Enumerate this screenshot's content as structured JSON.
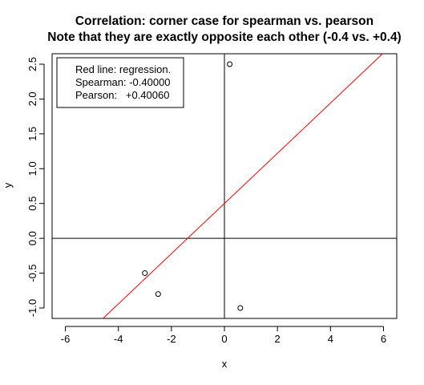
{
  "chart_data": {
    "type": "scatter",
    "title": "Correlation: corner case for spearman vs. pearson",
    "subtitle": "Note that they are exactly opposite each other (-0.4 vs. +0.4)",
    "xlabel": "x",
    "ylabel": "y",
    "xlim": [
      -6.5,
      6.5
    ],
    "ylim": [
      -1.15,
      2.65
    ],
    "xticks": [
      -6,
      -4,
      -2,
      0,
      2,
      4,
      6
    ],
    "yticks": [
      -1.0,
      -0.5,
      0.0,
      0.5,
      1.0,
      1.5,
      2.0,
      2.5
    ],
    "xtick_labels": [
      "-6",
      "-4",
      "-2",
      "0",
      "2",
      "4",
      "6"
    ],
    "ytick_labels": [
      "-1.0",
      "-0.5",
      "0.0",
      "0.5",
      "1.0",
      "1.5",
      "2.0",
      "2.5"
    ],
    "points": [
      {
        "x": -3.0,
        "y": -0.5
      },
      {
        "x": -2.5,
        "y": -0.8
      },
      {
        "x": 0.2,
        "y": 2.5
      },
      {
        "x": 0.6,
        "y": -1.0
      }
    ],
    "regression_line": {
      "intercept": 0.5,
      "slope": 0.3604,
      "color": "#ff0000"
    },
    "reference_lines": {
      "h": 0,
      "v": 0,
      "color": "#000000"
    },
    "legend": {
      "position": "top-left",
      "lines": [
        "Red line: regression.",
        "Spearman: -0.40000",
        "Pearson:   +0.40060"
      ]
    },
    "grid": false
  }
}
